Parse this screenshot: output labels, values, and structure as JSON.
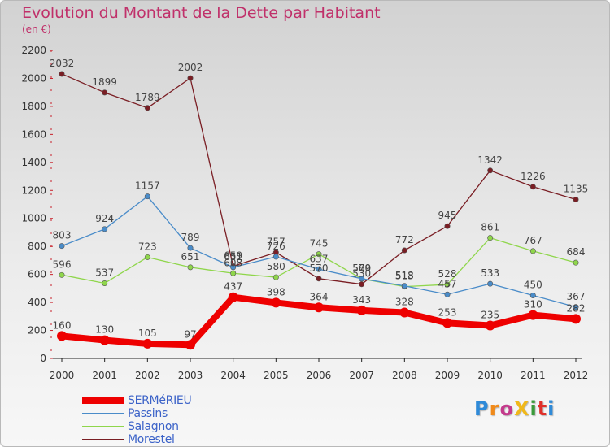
{
  "title": "Evolution du Montant de la Dette par Habitant",
  "unit": "(en €)",
  "logo": "ProXiti",
  "chart_data": {
    "type": "line",
    "categories": [
      "2000",
      "2001",
      "2002",
      "2003",
      "2004",
      "2005",
      "2006",
      "2007",
      "2008",
      "2009",
      "2010",
      "2011",
      "2012"
    ],
    "ylim": [
      0,
      2200
    ],
    "yticks": [
      0,
      200,
      400,
      600,
      800,
      1000,
      1200,
      1400,
      1600,
      1800,
      2000,
      2200
    ],
    "grid": false,
    "legend_position": "bottom-left",
    "series": [
      {
        "name": "SERMéRIEU",
        "color": "#ee0000",
        "values": [
          160,
          130,
          105,
          97,
          437,
          398,
          364,
          343,
          328,
          253,
          235,
          310,
          282
        ]
      },
      {
        "name": "Passins",
        "color": "#4a8cc9",
        "values": [
          803,
          924,
          1157,
          789,
          651,
          726,
          637,
          570,
          518,
          457,
          533,
          450,
          367
        ]
      },
      {
        "name": "Salagnon",
        "color": "#8fd64b",
        "values": [
          596,
          537,
          723,
          651,
          608,
          580,
          745,
          569,
          513,
          528,
          861,
          767,
          684
        ]
      },
      {
        "name": "Morestel",
        "color": "#7a1e24",
        "values": [
          2032,
          1899,
          1789,
          2002,
          659,
          757,
          570,
          530,
          772,
          945,
          1342,
          1226,
          1135
        ]
      }
    ]
  }
}
